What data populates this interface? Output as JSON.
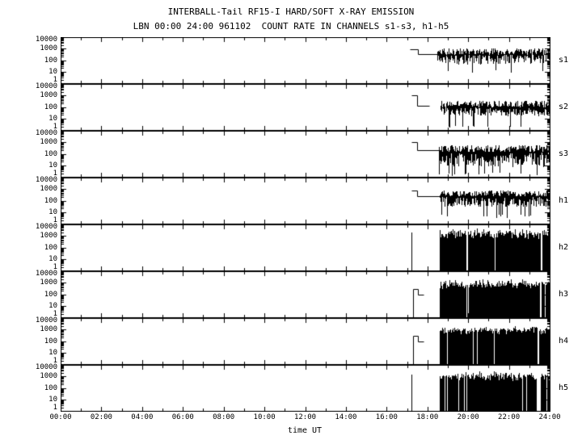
{
  "chart_data": {
    "type": "line",
    "title": "INTERBALL-Tail RF15-I HARD/SOFT X-RAY EMISSION",
    "subtitle": "LBN 00:00 24:00 961102  COUNT RATE IN CHANNELS s1-s3, h1-h5",
    "xlabel": "time UT",
    "x_range_hours": [
      0,
      24
    ],
    "x_ticks": [
      "00:00",
      "02:00",
      "04:00",
      "06:00",
      "08:00",
      "10:00",
      "12:00",
      "14:00",
      "16:00",
      "18:00",
      "20:00",
      "22:00",
      "24:00"
    ],
    "y_scale": "log",
    "y_range": [
      1,
      10000
    ],
    "y_ticks": [
      "10000",
      "1000",
      "100",
      "10",
      "1"
    ],
    "grid": false,
    "line_color": "#000000",
    "background": "#ffffff",
    "panels": [
      {
        "label": "s1",
        "seed": 11,
        "ops": [
          {
            "op": "steps",
            "from_bottom": false,
            "points": [
              [
                17.15,
                900
              ],
              [
                17.55,
                350
              ]
            ],
            "end": 18.5
          },
          {
            "op": "noise",
            "start": 18.5,
            "end": 24.0,
            "center": 300,
            "up_dec": 0.55,
            "down_dec": 0.85,
            "spike_prob": 0.05,
            "spike_floor": 8,
            "gap_prob": 0.004
          }
        ]
      },
      {
        "label": "s2",
        "seed": 22,
        "ops": [
          {
            "op": "steps",
            "from_bottom": false,
            "points": [
              [
                17.2,
                1000
              ],
              [
                17.5,
                120
              ]
            ],
            "end": 18.1
          },
          {
            "op": "noise",
            "start": 18.65,
            "end": 24.0,
            "center": 90,
            "up_dec": 0.6,
            "down_dec": 0.75,
            "spike_prob": 0.04,
            "spike_floor": 1.5,
            "gap_prob": 0.01
          }
        ]
      },
      {
        "label": "s3",
        "seed": 33,
        "ops": [
          {
            "op": "steps",
            "from_bottom": false,
            "points": [
              [
                17.2,
                1000
              ],
              [
                17.5,
                200
              ]
            ],
            "end": 18.55
          },
          {
            "op": "noise",
            "start": 18.55,
            "end": 24.0,
            "center": 140,
            "up_dec": 0.6,
            "down_dec": 1.3,
            "spike_prob": 0.1,
            "spike_floor": 1.2,
            "gap_prob": 0.008
          }
        ]
      },
      {
        "label": "h1",
        "seed": 44,
        "ops": [
          {
            "op": "steps",
            "from_bottom": false,
            "points": [
              [
                17.2,
                800
              ],
              [
                17.5,
                250
              ]
            ],
            "end": 18.6
          },
          {
            "op": "noise",
            "start": 18.6,
            "end": 24.0,
            "center": 220,
            "up_dec": 0.55,
            "down_dec": 0.9,
            "spike_prob": 0.05,
            "spike_floor": 3,
            "gap_prob": 0.004
          }
        ]
      },
      {
        "label": "h2",
        "seed": 55,
        "ops": [
          {
            "op": "vline",
            "t": 17.2,
            "v": 2000
          },
          {
            "op": "block",
            "start": 18.6,
            "end": 24.0,
            "top": 1600,
            "top_var_dec": 0.5,
            "gap_prob": 0.012,
            "gaps": [
              [
                19.9,
                19.97
              ],
              [
                21.3,
                21.34
              ],
              [
                23.55,
                23.62
              ]
            ]
          }
        ]
      },
      {
        "label": "h3",
        "seed": 66,
        "ops": [
          {
            "op": "steps",
            "from_bottom": true,
            "points": [
              [
                17.3,
                300
              ],
              [
                17.55,
                90
              ]
            ],
            "end": 17.8
          },
          {
            "op": "block",
            "start": 18.6,
            "end": 24.0,
            "top": 800,
            "top_var_dec": 0.45,
            "gap_prob": 0.03,
            "gaps": [
              [
                23.5,
                23.6
              ]
            ]
          }
        ]
      },
      {
        "label": "h4",
        "seed": 77,
        "ops": [
          {
            "op": "steps",
            "from_bottom": true,
            "points": [
              [
                17.3,
                300
              ],
              [
                17.55,
                90
              ]
            ],
            "end": 17.8
          },
          {
            "op": "block",
            "start": 18.6,
            "end": 24.0,
            "top": 900,
            "top_var_dec": 0.4,
            "gap_prob": 0.02,
            "gaps": [
              [
                21.25,
                21.3
              ],
              [
                23.4,
                23.47
              ]
            ]
          }
        ]
      },
      {
        "label": "h5",
        "seed": 88,
        "ops": [
          {
            "op": "vline",
            "t": 17.2,
            "v": 1500
          },
          {
            "op": "block",
            "start": 18.6,
            "end": 24.0,
            "top": 1000,
            "top_var_dec": 0.5,
            "gap_prob": 0.02,
            "gaps": [
              [
                19.9,
                19.94
              ],
              [
                23.35,
                23.55
              ]
            ]
          }
        ]
      }
    ]
  }
}
